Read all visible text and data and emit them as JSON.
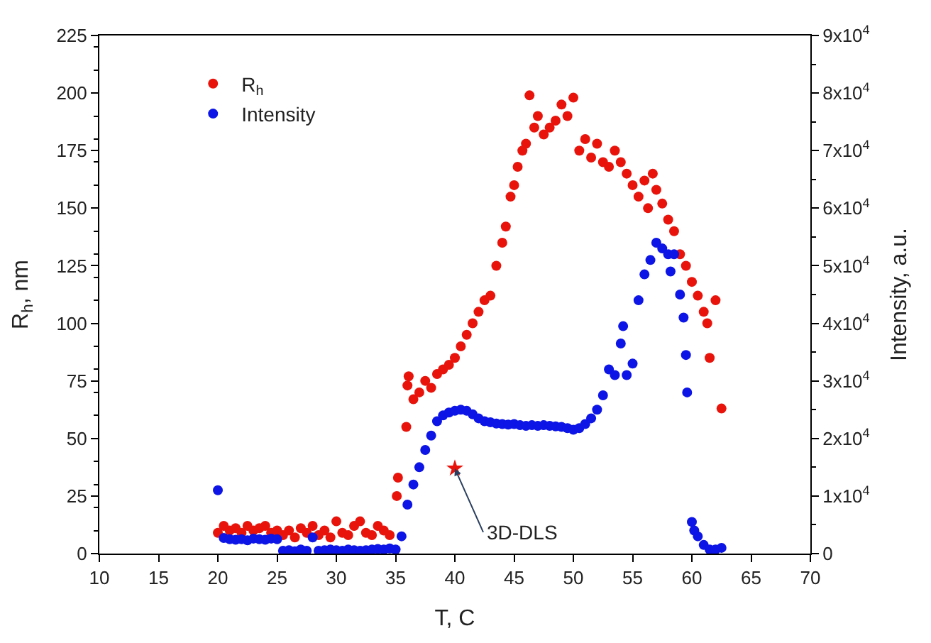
{
  "chart_data": {
    "type": "scatter",
    "xlabel": "T, C",
    "ylabel": "R$_{h}$, nm",
    "y2label": "Intensity, a.u.",
    "xlim": [
      10,
      70
    ],
    "xticks": [
      10,
      15,
      20,
      25,
      30,
      35,
      40,
      45,
      50,
      55,
      60,
      65,
      70
    ],
    "ylim": [
      0,
      225
    ],
    "yticks": [
      0,
      25,
      50,
      75,
      100,
      125,
      150,
      175,
      200,
      225
    ],
    "y2lim": [
      0,
      90000
    ],
    "y2ticks": [
      {
        "value": 0,
        "label": "0"
      },
      {
        "value": 10000,
        "label": "1x10$^{4}$"
      },
      {
        "value": 20000,
        "label": "2x10$^{4}$"
      },
      {
        "value": 30000,
        "label": "3x10$^{4}$"
      },
      {
        "value": 40000,
        "label": "4x10$^{4}$"
      },
      {
        "value": 50000,
        "label": "5x10$^{4}$"
      },
      {
        "value": 60000,
        "label": "6x10$^{4}$"
      },
      {
        "value": 70000,
        "label": "7x10$^{4}$"
      },
      {
        "value": 80000,
        "label": "8x10$^{4}$"
      },
      {
        "value": 90000,
        "label": "9x10$^{4}$"
      }
    ],
    "legend": "top left",
    "marker": "circle",
    "series": [
      {
        "name": "R$_{h}$",
        "color": "#e8140c",
        "x": [
          20,
          20.5,
          21,
          21.5,
          22,
          22.5,
          23,
          23.5,
          24,
          24.5,
          25,
          25.5,
          26,
          26.5,
          27,
          27.5,
          28,
          28.5,
          29,
          29.5,
          30,
          30.5,
          31,
          31.5,
          32,
          32.5,
          33,
          33.5,
          34,
          34.5,
          35.1,
          35.2,
          35.9,
          36,
          36.1,
          36.5,
          37,
          37.5,
          38,
          38.5,
          39,
          39.5,
          40,
          40.5,
          41,
          41.5,
          42,
          42.5,
          43,
          43.5,
          44,
          44.3,
          44.7,
          45,
          45.3,
          45.7,
          46,
          46.3,
          46.7,
          47,
          47.5,
          48,
          48.5,
          49,
          49.5,
          50,
          50.5,
          51,
          51.5,
          52,
          52.5,
          53,
          53.5,
          54,
          54.5,
          55,
          55.5,
          56,
          56.3,
          56.7,
          57,
          57.5,
          58,
          58.5,
          59,
          59.5,
          60,
          60.5,
          61,
          61.3,
          61.5,
          62,
          62.5
        ],
        "values": [
          9,
          12,
          10,
          11,
          9,
          12,
          10,
          11,
          12,
          9,
          10,
          8,
          10,
          7,
          11,
          9,
          12,
          8,
          10,
          7,
          14,
          9,
          8,
          12,
          14,
          9,
          8,
          12,
          10,
          8,
          25,
          33,
          55,
          73,
          77,
          67,
          70,
          75,
          72,
          78,
          80,
          82,
          85,
          90,
          95,
          100,
          105,
          110,
          112,
          125,
          135,
          142,
          155,
          160,
          168,
          175,
          178,
          199,
          185,
          190,
          182,
          185,
          188,
          195,
          190,
          198,
          175,
          180,
          172,
          178,
          170,
          168,
          175,
          170,
          165,
          160,
          155,
          162,
          150,
          165,
          158,
          152,
          145,
          140,
          130,
          125,
          118,
          112,
          105,
          100,
          85,
          110,
          63
        ]
      },
      {
        "name": "Intensity",
        "color": "#0c14e6",
        "axis": "y2",
        "x": [
          20,
          20.5,
          21,
          21.5,
          22,
          22.5,
          23,
          23.5,
          24,
          24.5,
          25,
          25.5,
          26,
          26.5,
          27,
          27.5,
          28,
          28.5,
          29,
          29.5,
          30,
          30.5,
          31,
          31.5,
          32,
          32.5,
          33,
          33.5,
          34,
          34.5,
          35,
          35.5,
          36,
          36.5,
          37,
          37.5,
          38,
          38.5,
          39,
          39.5,
          40,
          40.5,
          41,
          41.5,
          42,
          42.5,
          43,
          43.5,
          44,
          44.5,
          45,
          45.5,
          46,
          46.5,
          47,
          47.5,
          48,
          48.5,
          49,
          49.5,
          50,
          50.5,
          51,
          51.5,
          52,
          52.5,
          53,
          53.5,
          54,
          54.2,
          54.5,
          55,
          55.5,
          56,
          56.5,
          57,
          57.5,
          58,
          58.2,
          58.5,
          59,
          59.3,
          59.5,
          59.6,
          60,
          60.2,
          60.5,
          61,
          61.5,
          62,
          62.5
        ],
        "values": [
          11000,
          2700,
          2500,
          2400,
          2500,
          2300,
          2600,
          2500,
          2400,
          2600,
          2500,
          500,
          600,
          400,
          700,
          500,
          2800,
          500,
          600,
          700,
          600,
          500,
          700,
          600,
          500,
          600,
          700,
          800,
          700,
          900,
          700,
          3000,
          8500,
          12000,
          15000,
          18000,
          20500,
          23000,
          24000,
          24500,
          24800,
          25000,
          24800,
          24200,
          23500,
          23000,
          22800,
          22600,
          22500,
          22400,
          22500,
          22300,
          22200,
          22300,
          22200,
          22300,
          22200,
          22100,
          22000,
          21800,
          21500,
          21800,
          22500,
          23500,
          25000,
          27500,
          32000,
          31000,
          36500,
          39500,
          31000,
          33000,
          44000,
          48500,
          51000,
          54000,
          53000,
          52000,
          49000,
          52000,
          45000,
          41000,
          34500,
          28000,
          5500,
          4000,
          3000,
          1500,
          700,
          700,
          1000
        ]
      },
      {
        "color": "#e8140c",
        "marker": "star",
        "x": [
          40
        ],
        "values": [
          37
        ]
      }
    ],
    "annotations": [
      {
        "text": "3D-DLS",
        "x": 40,
        "y": 37
      }
    ]
  }
}
